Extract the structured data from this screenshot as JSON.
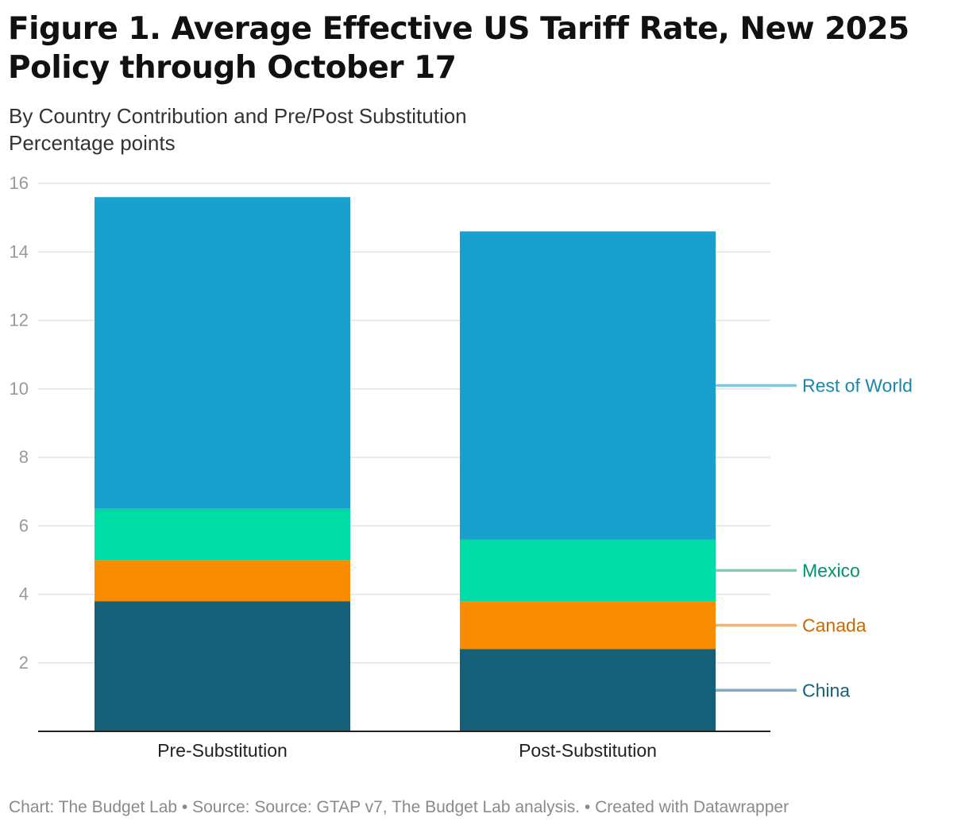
{
  "title": "Figure 1. Average Effective US Tariff Rate, New 2025 Policy through October 17",
  "subtitle": "By Country Contribution and Pre/Post Substitution",
  "unit_line": "Percentage points",
  "footer": {
    "chart_credit": "Chart: The Budget Lab",
    "separator": " • ",
    "source": "Source: Source: GTAP v7, The Budget Lab analysis.",
    "created_with": "Created with Datawrapper"
  },
  "chart_data": {
    "type": "bar",
    "stacked": true,
    "title": "Figure 1. Average Effective US Tariff Rate, New 2025 Policy through October 17",
    "subtitle": "By Country Contribution and Pre/Post Substitution",
    "ylabel": "Percentage points",
    "categories": [
      "Pre-Substitution",
      "Post-Substitution"
    ],
    "ylim": [
      0,
      16
    ],
    "yticks": [
      2,
      4,
      6,
      8,
      10,
      12,
      14,
      16
    ],
    "grid": true,
    "legend": "direct labels on right",
    "series": [
      {
        "name": "China",
        "color": "#16607a",
        "label_color": "#16607a",
        "line_color": "#8aaabb",
        "values": [
          3.8,
          2.4
        ]
      },
      {
        "name": "Canada",
        "color": "#fa8c00",
        "label_color": "#c76a00",
        "line_color": "#f0b27a",
        "values": [
          1.2,
          1.4
        ]
      },
      {
        "name": "Mexico",
        "color": "#00dca6",
        "label_color": "#00936f",
        "line_color": "#7fcfb4",
        "values": [
          1.5,
          1.8
        ]
      },
      {
        "name": "Rest of World",
        "color": "#1aa0cd",
        "label_color": "#1a86ad",
        "line_color": "#84c5dc",
        "values": [
          9.1,
          9.0
        ]
      }
    ]
  }
}
